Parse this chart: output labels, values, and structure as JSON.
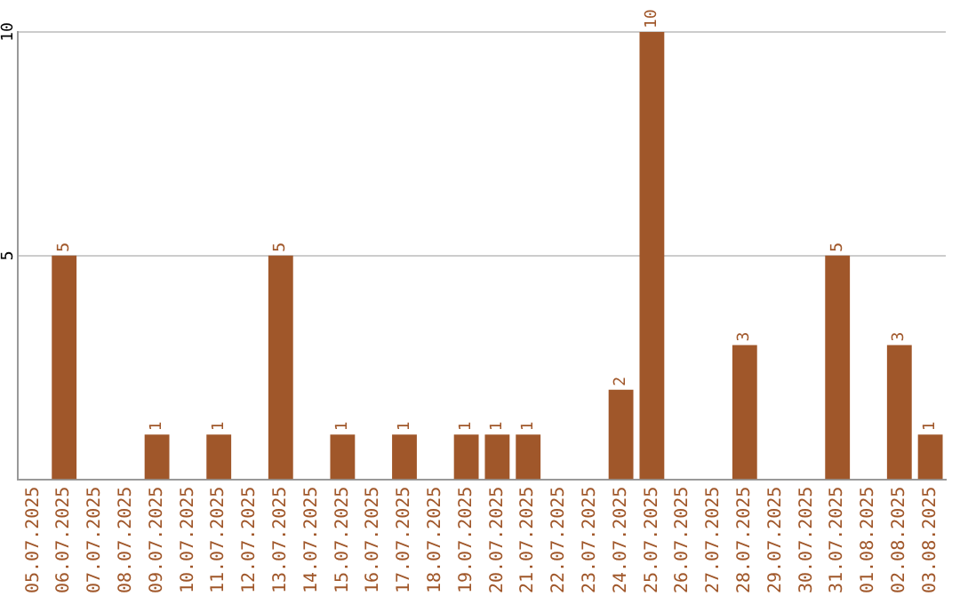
{
  "chart_data": {
    "type": "bar",
    "categories": [
      "05.07.2025",
      "06.07.2025",
      "07.07.2025",
      "08.07.2025",
      "09.07.2025",
      "10.07.2025",
      "11.07.2025",
      "12.07.2025",
      "13.07.2025",
      "14.07.2025",
      "15.07.2025",
      "16.07.2025",
      "17.07.2025",
      "18.07.2025",
      "19.07.2025",
      "20.07.2025",
      "21.07.2025",
      "22.07.2025",
      "23.07.2025",
      "24.07.2025",
      "25.07.2025",
      "26.07.2025",
      "27.07.2025",
      "28.07.2025",
      "29.07.2025",
      "30.07.2025",
      "31.07.2025",
      "01.08.2025",
      "02.08.2025",
      "03.08.2025"
    ],
    "values": [
      0,
      5,
      0,
      0,
      1,
      0,
      1,
      0,
      5,
      0,
      1,
      0,
      1,
      0,
      1,
      1,
      1,
      0,
      0,
      2,
      10,
      0,
      0,
      3,
      0,
      0,
      5,
      0,
      3,
      1
    ],
    "value_labels": [
      null,
      "5",
      null,
      null,
      "1",
      null,
      "1",
      null,
      "5",
      null,
      "1",
      null,
      "1",
      null,
      "1",
      "1",
      "1",
      null,
      null,
      "2",
      "10",
      null,
      null,
      "3",
      null,
      null,
      "5",
      null,
      "3",
      "1"
    ],
    "color": "#a0572a",
    "ylim": [
      0,
      10
    ],
    "yticks": [
      5,
      10
    ],
    "grid": "y",
    "legend": false
  }
}
